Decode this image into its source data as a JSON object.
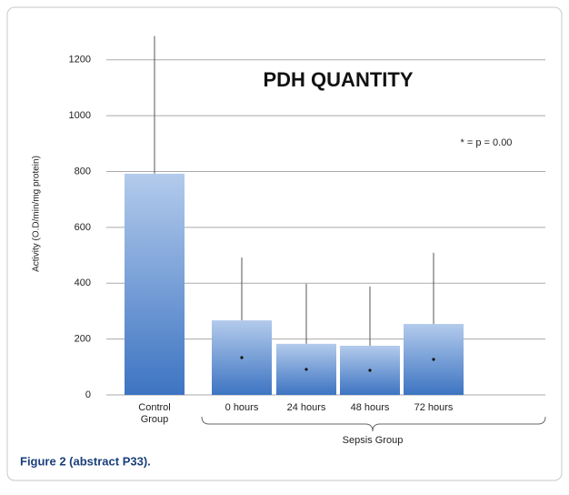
{
  "chart_data": {
    "type": "bar",
    "title": "PDH QUANTITY",
    "y_label": "Activity (O.D/min/mg protein)",
    "annotation": "* = p = 0.00",
    "group_label": "Sepsis Group",
    "caption": "Figure 2 (abstract P33).",
    "categories": [
      "Control Group",
      "0 hours",
      "24 hours",
      "48 hours",
      "72 hours"
    ],
    "values": [
      792,
      267,
      183,
      176,
      254
    ],
    "errors": [
      493,
      225,
      215,
      212,
      255
    ],
    "color": "#5a8fd6",
    "ylim": [
      0,
      1300
    ],
    "yticks": [
      0,
      200,
      400,
      600,
      800,
      1000,
      1200
    ],
    "grid": true
  }
}
